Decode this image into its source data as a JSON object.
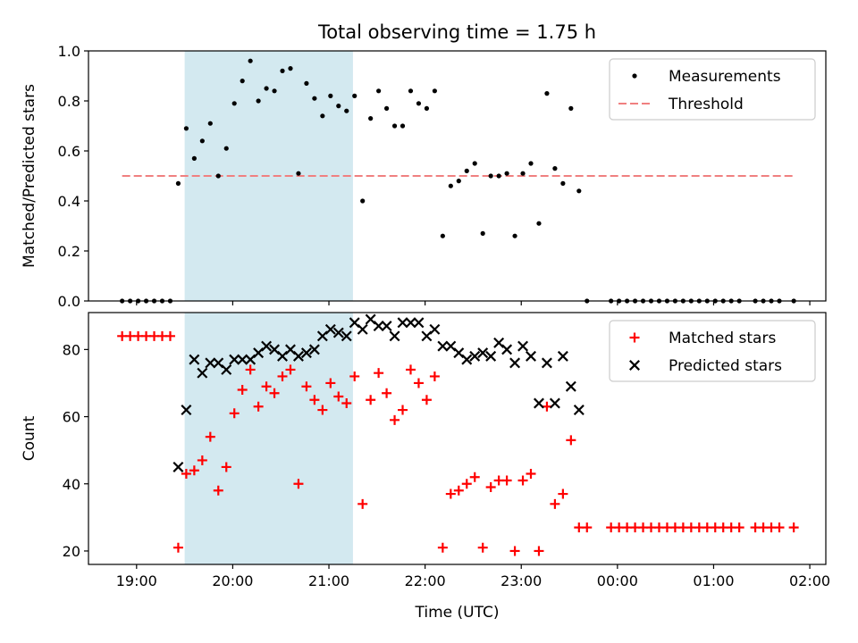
{
  "chart_data": [
    {
      "type": "scatter",
      "title": "Total observing time = 1.75 h",
      "ylabel": "Matched/Predicted stars",
      "xlabel": "",
      "ylim": [
        0,
        1.0
      ],
      "yticks": [
        0.0,
        0.2,
        0.4,
        0.6,
        0.8,
        1.0
      ],
      "ytick_labels": [
        "0.0",
        "0.2",
        "0.4",
        "0.6",
        "0.8",
        "1.0"
      ],
      "shaded_interval": [
        "19:30",
        "21:15"
      ],
      "shaded_color": "#d3e9f0",
      "legend_position": "upper right",
      "legend": [
        "Measurements",
        "Threshold"
      ],
      "threshold": {
        "name": "Threshold",
        "value": 0.5,
        "x_start": "18:51",
        "x_end": "01:50",
        "color": "#f08080",
        "style": "dashed"
      },
      "series": [
        {
          "name": "Measurements",
          "marker": "dot",
          "color": "#000000",
          "points": [
            [
              "18:51",
              0
            ],
            [
              "18:56",
              0
            ],
            [
              "19:01",
              0
            ],
            [
              "19:06",
              0
            ],
            [
              "19:11",
              0
            ],
            [
              "19:16",
              0
            ],
            [
              "19:21",
              0
            ],
            [
              "19:26",
              0.47
            ],
            [
              "19:31",
              0.69
            ],
            [
              "19:36",
              0.57
            ],
            [
              "19:41",
              0.64
            ],
            [
              "19:46",
              0.71
            ],
            [
              "19:51",
              0.5
            ],
            [
              "19:56",
              0.61
            ],
            [
              "20:01",
              0.79
            ],
            [
              "20:06",
              0.88
            ],
            [
              "20:11",
              0.96
            ],
            [
              "20:16",
              0.8
            ],
            [
              "20:21",
              0.85
            ],
            [
              "20:26",
              0.84
            ],
            [
              "20:31",
              0.92
            ],
            [
              "20:36",
              0.93
            ],
            [
              "20:41",
              0.51
            ],
            [
              "20:46",
              0.87
            ],
            [
              "20:51",
              0.81
            ],
            [
              "20:56",
              0.74
            ],
            [
              "21:01",
              0.82
            ],
            [
              "21:06",
              0.78
            ],
            [
              "21:11",
              0.76
            ],
            [
              "21:16",
              0.82
            ],
            [
              "21:21",
              0.4
            ],
            [
              "21:26",
              0.73
            ],
            [
              "21:31",
              0.84
            ],
            [
              "21:36",
              0.77
            ],
            [
              "21:41",
              0.7
            ],
            [
              "21:46",
              0.7
            ],
            [
              "21:51",
              0.84
            ],
            [
              "21:56",
              0.79
            ],
            [
              "22:01",
              0.77
            ],
            [
              "22:06",
              0.84
            ],
            [
              "22:11",
              0.26
            ],
            [
              "22:16",
              0.46
            ],
            [
              "22:21",
              0.48
            ],
            [
              "22:26",
              0.52
            ],
            [
              "22:31",
              0.55
            ],
            [
              "22:36",
              0.27
            ],
            [
              "22:41",
              0.5
            ],
            [
              "22:46",
              0.5
            ],
            [
              "22:51",
              0.51
            ],
            [
              "22:56",
              0.26
            ],
            [
              "23:01",
              0.51
            ],
            [
              "23:06",
              0.55
            ],
            [
              "23:11",
              0.31
            ],
            [
              "23:16",
              0.83
            ],
            [
              "23:21",
              0.53
            ],
            [
              "23:26",
              0.47
            ],
            [
              "23:31",
              0.77
            ],
            [
              "23:36",
              0.44
            ],
            [
              "23:41",
              0
            ],
            [
              "23:56",
              0
            ],
            [
              "00:01",
              0
            ],
            [
              "00:06",
              0
            ],
            [
              "00:11",
              0
            ],
            [
              "00:16",
              0
            ],
            [
              "00:21",
              0
            ],
            [
              "00:26",
              0
            ],
            [
              "00:31",
              0
            ],
            [
              "00:36",
              0
            ],
            [
              "00:41",
              0
            ],
            [
              "00:46",
              0
            ],
            [
              "00:51",
              0
            ],
            [
              "00:56",
              0
            ],
            [
              "01:01",
              0
            ],
            [
              "01:06",
              0
            ],
            [
              "01:11",
              0
            ],
            [
              "01:16",
              0
            ],
            [
              "01:26",
              0
            ],
            [
              "01:31",
              0
            ],
            [
              "01:36",
              0
            ],
            [
              "01:41",
              0
            ],
            [
              "01:50",
              0
            ]
          ]
        }
      ]
    },
    {
      "type": "scatter",
      "title": "",
      "ylabel": "Count",
      "xlabel": "Time (UTC)",
      "ylim": [
        16,
        91
      ],
      "yticks": [
        20,
        40,
        60,
        80
      ],
      "ytick_labels": [
        "20",
        "40",
        "60",
        "80"
      ],
      "x_range": [
        "18:30",
        "02:10"
      ],
      "xticks": [
        "19:00",
        "20:00",
        "21:00",
        "22:00",
        "23:00",
        "00:00",
        "01:00",
        "02:00"
      ],
      "xtick_labels": [
        "19:00",
        "20:00",
        "21:00",
        "22:00",
        "23:00",
        "00:00",
        "01:00",
        "02:00"
      ],
      "shaded_interval": [
        "19:30",
        "21:15"
      ],
      "shaded_color": "#d3e9f0",
      "legend_position": "upper right",
      "legend": [
        "Matched stars",
        "Predicted stars"
      ],
      "series": [
        {
          "name": "Matched stars",
          "marker": "plus",
          "color": "#ff0000",
          "points": [
            [
              "18:51",
              84
            ],
            [
              "18:56",
              84
            ],
            [
              "19:01",
              84
            ],
            [
              "19:06",
              84
            ],
            [
              "19:11",
              84
            ],
            [
              "19:16",
              84
            ],
            [
              "19:21",
              84
            ],
            [
              "19:26",
              21
            ],
            [
              "19:31",
              43
            ],
            [
              "19:36",
              44
            ],
            [
              "19:41",
              47
            ],
            [
              "19:46",
              54
            ],
            [
              "19:51",
              38
            ],
            [
              "19:56",
              45
            ],
            [
              "20:01",
              61
            ],
            [
              "20:06",
              68
            ],
            [
              "20:11",
              74
            ],
            [
              "20:16",
              63
            ],
            [
              "20:21",
              69
            ],
            [
              "20:26",
              67
            ],
            [
              "20:31",
              72
            ],
            [
              "20:36",
              74
            ],
            [
              "20:41",
              40
            ],
            [
              "20:46",
              69
            ],
            [
              "20:51",
              65
            ],
            [
              "20:56",
              62
            ],
            [
              "21:01",
              70
            ],
            [
              "21:06",
              66
            ],
            [
              "21:11",
              64
            ],
            [
              "21:16",
              72
            ],
            [
              "21:21",
              34
            ],
            [
              "21:26",
              65
            ],
            [
              "21:31",
              73
            ],
            [
              "21:36",
              67
            ],
            [
              "21:41",
              59
            ],
            [
              "21:46",
              62
            ],
            [
              "21:51",
              74
            ],
            [
              "21:56",
              70
            ],
            [
              "22:01",
              65
            ],
            [
              "22:06",
              72
            ],
            [
              "22:11",
              21
            ],
            [
              "22:16",
              37
            ],
            [
              "22:21",
              38
            ],
            [
              "22:26",
              40
            ],
            [
              "22:31",
              42
            ],
            [
              "22:36",
              21
            ],
            [
              "22:41",
              39
            ],
            [
              "22:46",
              41
            ],
            [
              "22:51",
              41
            ],
            [
              "22:56",
              20
            ],
            [
              "23:01",
              41
            ],
            [
              "23:06",
              43
            ],
            [
              "23:11",
              20
            ],
            [
              "23:16",
              63
            ],
            [
              "23:21",
              34
            ],
            [
              "23:26",
              37
            ],
            [
              "23:31",
              53
            ],
            [
              "23:36",
              27
            ],
            [
              "23:41",
              27
            ],
            [
              "23:56",
              27
            ],
            [
              "00:01",
              27
            ],
            [
              "00:06",
              27
            ],
            [
              "00:11",
              27
            ],
            [
              "00:16",
              27
            ],
            [
              "00:21",
              27
            ],
            [
              "00:26",
              27
            ],
            [
              "00:31",
              27
            ],
            [
              "00:36",
              27
            ],
            [
              "00:41",
              27
            ],
            [
              "00:46",
              27
            ],
            [
              "00:51",
              27
            ],
            [
              "00:56",
              27
            ],
            [
              "01:01",
              27
            ],
            [
              "01:06",
              27
            ],
            [
              "01:11",
              27
            ],
            [
              "01:16",
              27
            ],
            [
              "01:26",
              27
            ],
            [
              "01:31",
              27
            ],
            [
              "01:36",
              27
            ],
            [
              "01:41",
              27
            ],
            [
              "01:50",
              27
            ]
          ]
        },
        {
          "name": "Predicted stars",
          "marker": "x",
          "color": "#000000",
          "points": [
            [
              "19:26",
              45
            ],
            [
              "19:31",
              62
            ],
            [
              "19:36",
              77
            ],
            [
              "19:41",
              73
            ],
            [
              "19:46",
              76
            ],
            [
              "19:51",
              76
            ],
            [
              "19:56",
              74
            ],
            [
              "20:01",
              77
            ],
            [
              "20:06",
              77
            ],
            [
              "20:11",
              77
            ],
            [
              "20:16",
              79
            ],
            [
              "20:21",
              81
            ],
            [
              "20:26",
              80
            ],
            [
              "20:31",
              78
            ],
            [
              "20:36",
              80
            ],
            [
              "20:41",
              78
            ],
            [
              "20:46",
              79
            ],
            [
              "20:51",
              80
            ],
            [
              "20:56",
              84
            ],
            [
              "21:01",
              86
            ],
            [
              "21:06",
              85
            ],
            [
              "21:11",
              84
            ],
            [
              "21:16",
              88
            ],
            [
              "21:21",
              86
            ],
            [
              "21:26",
              89
            ],
            [
              "21:31",
              87
            ],
            [
              "21:36",
              87
            ],
            [
              "21:41",
              84
            ],
            [
              "21:46",
              88
            ],
            [
              "21:51",
              88
            ],
            [
              "21:56",
              88
            ],
            [
              "22:01",
              84
            ],
            [
              "22:06",
              86
            ],
            [
              "22:11",
              81
            ],
            [
              "22:16",
              81
            ],
            [
              "22:21",
              79
            ],
            [
              "22:26",
              77
            ],
            [
              "22:31",
              78
            ],
            [
              "22:36",
              79
            ],
            [
              "22:41",
              78
            ],
            [
              "22:46",
              82
            ],
            [
              "22:51",
              80
            ],
            [
              "22:56",
              76
            ],
            [
              "23:01",
              81
            ],
            [
              "23:06",
              78
            ],
            [
              "23:11",
              64
            ],
            [
              "23:16",
              76
            ],
            [
              "23:21",
              64
            ],
            [
              "23:26",
              78
            ],
            [
              "23:31",
              69
            ],
            [
              "23:36",
              62
            ]
          ]
        }
      ]
    }
  ]
}
